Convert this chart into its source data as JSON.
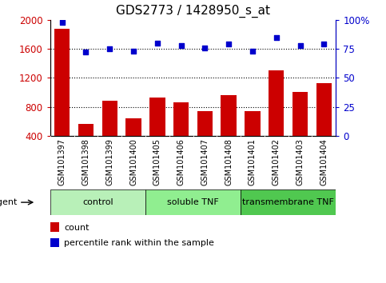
{
  "title": "GDS2773 / 1428950_s_at",
  "samples": [
    "GSM101397",
    "GSM101398",
    "GSM101399",
    "GSM101400",
    "GSM101405",
    "GSM101406",
    "GSM101407",
    "GSM101408",
    "GSM101401",
    "GSM101402",
    "GSM101403",
    "GSM101404"
  ],
  "counts": [
    1880,
    560,
    880,
    640,
    930,
    860,
    740,
    960,
    740,
    1300,
    1010,
    1130
  ],
  "percentiles": [
    98,
    72,
    75,
    73,
    80,
    78,
    76,
    79,
    73,
    85,
    78,
    79
  ],
  "groups": [
    {
      "label": "control",
      "start": 0,
      "end": 4,
      "color": "#b8f0b8"
    },
    {
      "label": "soluble TNF",
      "start": 4,
      "end": 8,
      "color": "#90ee90"
    },
    {
      "label": "transmembrane TNF",
      "start": 8,
      "end": 12,
      "color": "#50c850"
    }
  ],
  "bar_color": "#cc0000",
  "dot_color": "#0000cc",
  "ylim_left": [
    400,
    2000
  ],
  "ylim_right": [
    0,
    100
  ],
  "yticks_left": [
    400,
    800,
    1200,
    1600,
    2000
  ],
  "yticks_right": [
    0,
    25,
    50,
    75,
    100
  ],
  "grid_values": [
    800,
    1200,
    1600
  ],
  "legend_count_label": "count",
  "legend_pct_label": "percentile rank within the sample",
  "agent_label": "agent",
  "background_color": "#ffffff",
  "tick_area_color": "#d3d3d3",
  "title_fontsize": 11,
  "axis_fontsize": 8.5,
  "label_fontsize": 8,
  "sample_fontsize": 7
}
